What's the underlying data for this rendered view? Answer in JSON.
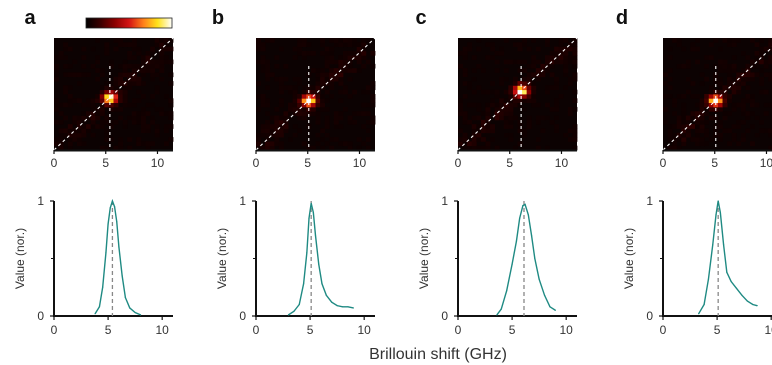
{
  "xlabel": "Brillouin shift (GHz)",
  "colors": {
    "curve": "#1f8a83",
    "axis": "#111111",
    "dashed": "#888888"
  },
  "colorbar": {
    "gradient": [
      "#000000",
      "#3a0000",
      "#8b0000",
      "#d31414",
      "#ff7f1a",
      "#ffe31a",
      "#ffffff"
    ]
  },
  "chart_data": [
    {
      "panel": "a",
      "type": "heatmap",
      "xticks": [
        "0",
        "5",
        "10"
      ],
      "xlim": [
        0,
        11.5
      ],
      "ylim": [
        0,
        11.5
      ],
      "peak_x": 5.4,
      "peak_y": 5.4,
      "diagonal": true,
      "marker_line_x": 5.4
    },
    {
      "panel": "b",
      "type": "heatmap",
      "xticks": [
        "0",
        "5",
        "10"
      ],
      "xlim": [
        0,
        11.5
      ],
      "ylim": [
        0,
        11.5
      ],
      "peak_x": 5.1,
      "peak_y": 5.1,
      "diagonal": true,
      "marker_line_x": 5.1
    },
    {
      "panel": "c",
      "type": "heatmap",
      "xticks": [
        "0",
        "5",
        "10"
      ],
      "xlim": [
        0,
        11.5
      ],
      "ylim": [
        0,
        11.5
      ],
      "peak_x": 6.1,
      "peak_y": 6.1,
      "diagonal": true,
      "marker_line_x": 6.1
    },
    {
      "panel": "d",
      "type": "heatmap",
      "xticks": [
        "0",
        "5",
        "10"
      ],
      "xlim": [
        0,
        11.5
      ],
      "ylim": [
        0,
        11.5
      ],
      "peak_x": 5.1,
      "peak_y": 5.1,
      "diagonal": true,
      "marker_line_x": 5.1
    },
    {
      "panel": "a",
      "type": "line",
      "ylabel": "Value (nor.)",
      "xticks": [
        "0",
        "5",
        "10"
      ],
      "yticks": [
        "0",
        "1"
      ],
      "xlim": [
        0,
        11
      ],
      "ylim": [
        0,
        1
      ],
      "marker_x": 5.4,
      "x": [
        3.8,
        4.2,
        4.5,
        4.8,
        5.0,
        5.2,
        5.4,
        5.6,
        5.8,
        6.0,
        6.3,
        6.6,
        7.0,
        7.5,
        8.0
      ],
      "y": [
        0.02,
        0.08,
        0.25,
        0.55,
        0.8,
        0.94,
        1.0,
        0.95,
        0.82,
        0.6,
        0.35,
        0.16,
        0.07,
        0.03,
        0.01
      ]
    },
    {
      "panel": "b",
      "type": "line",
      "ylabel": "Value (nor.)",
      "xticks": [
        "0",
        "5",
        "10"
      ],
      "yticks": [
        "0",
        "1"
      ],
      "xlim": [
        0,
        11
      ],
      "ylim": [
        0,
        1
      ],
      "marker_x": 5.1,
      "x": [
        3.0,
        3.5,
        4.0,
        4.4,
        4.7,
        4.9,
        5.1,
        5.3,
        5.5,
        5.8,
        6.1,
        6.5,
        7.0,
        7.5,
        8.0,
        8.5,
        9.0
      ],
      "y": [
        0.01,
        0.04,
        0.1,
        0.28,
        0.55,
        0.85,
        0.98,
        0.9,
        0.7,
        0.45,
        0.28,
        0.18,
        0.12,
        0.09,
        0.08,
        0.08,
        0.07
      ]
    },
    {
      "panel": "c",
      "type": "line",
      "ylabel": "Value (nor.)",
      "xticks": [
        "0",
        "5",
        "10"
      ],
      "yticks": [
        "0",
        "1"
      ],
      "xlim": [
        0,
        11
      ],
      "ylim": [
        0,
        1
      ],
      "marker_x": 6.1,
      "x": [
        3.6,
        4.0,
        4.5,
        5.0,
        5.4,
        5.7,
        6.0,
        6.2,
        6.5,
        6.8,
        7.1,
        7.5,
        8.0,
        8.5,
        9.0
      ],
      "y": [
        0.01,
        0.06,
        0.22,
        0.45,
        0.65,
        0.85,
        0.96,
        0.97,
        0.88,
        0.7,
        0.5,
        0.32,
        0.18,
        0.08,
        0.05
      ]
    },
    {
      "panel": "d",
      "type": "line",
      "ylabel": "Value (nor.)",
      "xticks": [
        "0",
        "5",
        "10"
      ],
      "yticks": [
        "0",
        "1"
      ],
      "xlim": [
        0,
        11
      ],
      "ylim": [
        0,
        1
      ],
      "marker_x": 5.1,
      "x": [
        3.3,
        3.8,
        4.2,
        4.6,
        4.9,
        5.1,
        5.3,
        5.6,
        5.9,
        6.3,
        6.8,
        7.3,
        7.8,
        8.3,
        8.7
      ],
      "y": [
        0.02,
        0.1,
        0.32,
        0.62,
        0.88,
        1.0,
        0.9,
        0.62,
        0.38,
        0.3,
        0.24,
        0.18,
        0.13,
        0.1,
        0.09
      ]
    }
  ]
}
